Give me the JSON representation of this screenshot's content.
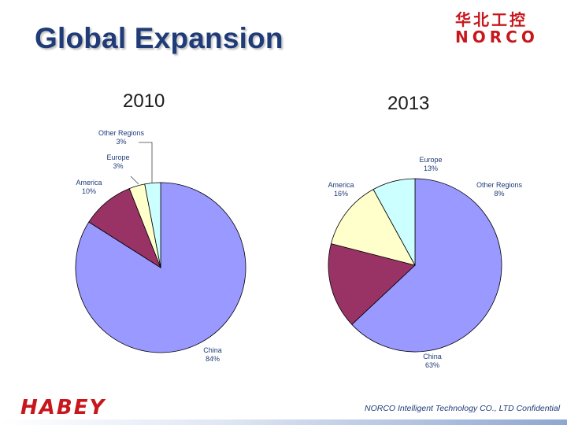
{
  "slide": {
    "title": "Global Expansion",
    "logo_cn": "华北工控",
    "logo_en": "NORCO",
    "bottom_logo": "HABEY",
    "footer": "NORCO Intelligent Technology CO., LTD  Confidential"
  },
  "colors": {
    "china": "#9999ff",
    "america": "#993366",
    "europe": "#ffffcc",
    "other": "#ccffff",
    "brand_red": "#c7171c",
    "title_blue": "#1f3b78"
  },
  "chart_data": [
    {
      "type": "pie",
      "title": "2010",
      "slices": [
        {
          "label": "China",
          "value": 84,
          "value_label": "84%",
          "color": "#9999ff"
        },
        {
          "label": "America",
          "value": 10,
          "value_label": "10%",
          "color": "#993366"
        },
        {
          "label": "Europe",
          "value": 3,
          "value_label": "3%",
          "color": "#ffffcc"
        },
        {
          "label": "Other Regions",
          "value": 3,
          "value_label": "3%",
          "color": "#ccffff"
        }
      ]
    },
    {
      "type": "pie",
      "title": "2013",
      "slices": [
        {
          "label": "China",
          "value": 63,
          "value_label": "63%",
          "color": "#9999ff"
        },
        {
          "label": "America",
          "value": 16,
          "value_label": "16%",
          "color": "#993366"
        },
        {
          "label": "Europe",
          "value": 13,
          "value_label": "13%",
          "color": "#ffffcc"
        },
        {
          "label": "Other Regions",
          "value": 8,
          "value_label": "8%",
          "color": "#ccffff"
        }
      ]
    }
  ]
}
